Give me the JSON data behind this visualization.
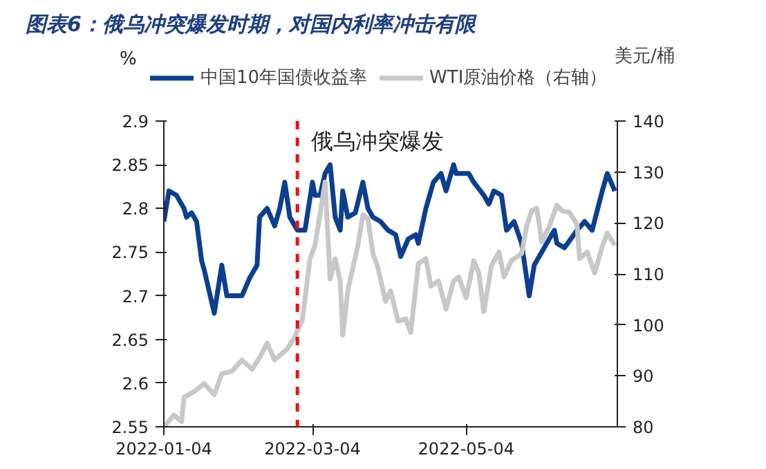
{
  "chart_data": {
    "type": "line",
    "title": "图表6：俄乌冲突爆发时期，对国内利率冲击有限",
    "ylabel": "%",
    "y2label": "美元/桶",
    "legend": "top",
    "grid": false,
    "marker": "none",
    "line_style": "solid",
    "xlim": [
      "2022-01-04",
      "2022-07-03"
    ],
    "xticks": [
      "2022-01-04",
      "2022-03-04",
      "2022-05-04"
    ],
    "ylim": [
      2.55,
      2.9
    ],
    "yticks": [
      2.55,
      2.6,
      2.65,
      2.7,
      2.75,
      2.8,
      2.85,
      2.9
    ],
    "y2lim": [
      80,
      140
    ],
    "y2ticks": [
      80,
      90,
      100,
      110,
      120,
      130,
      140
    ],
    "ref_lines": [
      {
        "axis": "x",
        "value": "2022-02-26",
        "label": "俄乌冲突爆发",
        "color": "#e8141b",
        "line_style": "dashed"
      }
    ],
    "series": [
      {
        "name": "中国10年国债收益率",
        "color": "#0d3f91",
        "x": [
          "2022-01-04",
          "2022-01-06",
          "2022-01-09",
          "2022-01-12",
          "2022-01-13",
          "2022-01-15",
          "2022-01-17",
          "2022-01-19",
          "2022-01-20",
          "2022-01-24",
          "2022-01-27",
          "2022-01-29",
          "2022-02-04",
          "2022-02-07",
          "2022-02-10",
          "2022-02-11",
          "2022-02-14",
          "2022-02-17",
          "2022-02-19",
          "2022-02-21",
          "2022-02-23",
          "2022-02-26",
          "2022-03-01",
          "2022-03-04",
          "2022-03-05",
          "2022-03-07",
          "2022-03-09",
          "2022-03-11",
          "2022-03-13",
          "2022-03-15",
          "2022-03-16",
          "2022-03-18",
          "2022-03-21",
          "2022-03-24",
          "2022-03-26",
          "2022-03-28",
          "2022-03-31",
          "2022-04-03",
          "2022-04-06",
          "2022-04-08",
          "2022-04-11",
          "2022-04-14",
          "2022-04-15",
          "2022-04-18",
          "2022-04-21",
          "2022-04-24",
          "2022-04-26",
          "2022-04-29",
          "2022-04-30",
          "2022-05-05",
          "2022-05-07",
          "2022-05-11",
          "2022-05-13",
          "2022-05-15",
          "2022-05-18",
          "2022-05-20",
          "2022-05-23",
          "2022-05-26",
          "2022-05-29",
          "2022-05-31",
          "2022-06-04",
          "2022-06-08",
          "2022-06-09",
          "2022-06-12",
          "2022-06-17",
          "2022-06-20",
          "2022-06-23",
          "2022-06-27",
          "2022-06-29",
          "2022-07-02"
        ],
        "values": [
          2.785,
          2.82,
          2.815,
          2.8,
          2.79,
          2.795,
          2.785,
          2.74,
          2.73,
          2.68,
          2.735,
          2.7,
          2.7,
          2.72,
          2.735,
          2.79,
          2.8,
          2.78,
          2.8,
          2.83,
          2.79,
          2.775,
          2.775,
          2.83,
          2.815,
          2.815,
          2.84,
          2.85,
          2.79,
          2.775,
          2.82,
          2.79,
          2.795,
          2.83,
          2.8,
          2.79,
          2.785,
          2.775,
          2.77,
          2.745,
          2.765,
          2.77,
          2.76,
          2.8,
          2.83,
          2.84,
          2.82,
          2.85,
          2.84,
          2.84,
          2.83,
          2.815,
          2.805,
          2.82,
          2.815,
          2.775,
          2.785,
          2.76,
          2.7,
          2.735,
          2.755,
          2.775,
          2.76,
          2.755,
          2.775,
          2.785,
          2.775,
          2.82,
          2.84,
          2.82
        ]
      },
      {
        "name": "WTI原油价格（右轴）",
        "color": "#c8c8c8",
        "axis": "y2",
        "x": [
          "2022-01-04",
          "2022-01-08",
          "2022-01-11",
          "2022-01-12",
          "2022-01-16",
          "2022-01-20",
          "2022-01-24",
          "2022-01-27",
          "2022-01-31",
          "2022-02-04",
          "2022-02-08",
          "2022-02-11",
          "2022-02-14",
          "2022-02-17",
          "2022-02-22",
          "2022-02-25",
          "2022-02-28",
          "2022-03-03",
          "2022-03-05",
          "2022-03-09",
          "2022-03-11",
          "2022-03-13",
          "2022-03-15",
          "2022-03-16",
          "2022-03-18",
          "2022-03-22",
          "2022-03-24",
          "2022-03-26",
          "2022-03-28",
          "2022-03-30",
          "2022-04-02",
          "2022-04-04",
          "2022-04-07",
          "2022-04-10",
          "2022-04-12",
          "2022-04-15",
          "2022-04-18",
          "2022-04-20",
          "2022-04-23",
          "2022-04-26",
          "2022-04-29",
          "2022-05-01",
          "2022-05-04",
          "2022-05-07",
          "2022-05-09",
          "2022-05-11",
          "2022-05-14",
          "2022-05-17",
          "2022-05-19",
          "2022-05-22",
          "2022-05-26",
          "2022-05-28",
          "2022-05-30",
          "2022-06-01",
          "2022-06-03",
          "2022-06-06",
          "2022-06-09",
          "2022-06-11",
          "2022-06-14",
          "2022-06-17",
          "2022-06-18",
          "2022-06-21",
          "2022-06-24",
          "2022-06-27",
          "2022-06-29",
          "2022-07-02"
        ],
        "values": [
          80,
          82.3,
          81,
          85.8,
          86.9,
          88.5,
          86.3,
          90.4,
          90.9,
          93.1,
          91.3,
          93.6,
          96.4,
          93.1,
          95.3,
          97.7,
          101,
          113,
          115.6,
          128,
          109,
          113,
          108.6,
          98,
          106.7,
          115.6,
          121.6,
          120.8,
          114,
          111.2,
          104.6,
          106.7,
          100.7,
          101.2,
          98.5,
          112,
          113,
          107.6,
          108.6,
          103.1,
          108.6,
          109.4,
          105.3,
          112.6,
          110.2,
          102.6,
          111.6,
          114.3,
          109.4,
          112.6,
          114,
          119.4,
          122.4,
          122.9,
          116.2,
          119.4,
          123.5,
          122.4,
          122.1,
          119.7,
          113,
          114.3,
          110.2,
          115.4,
          118,
          115.6
        ]
      }
    ]
  }
}
